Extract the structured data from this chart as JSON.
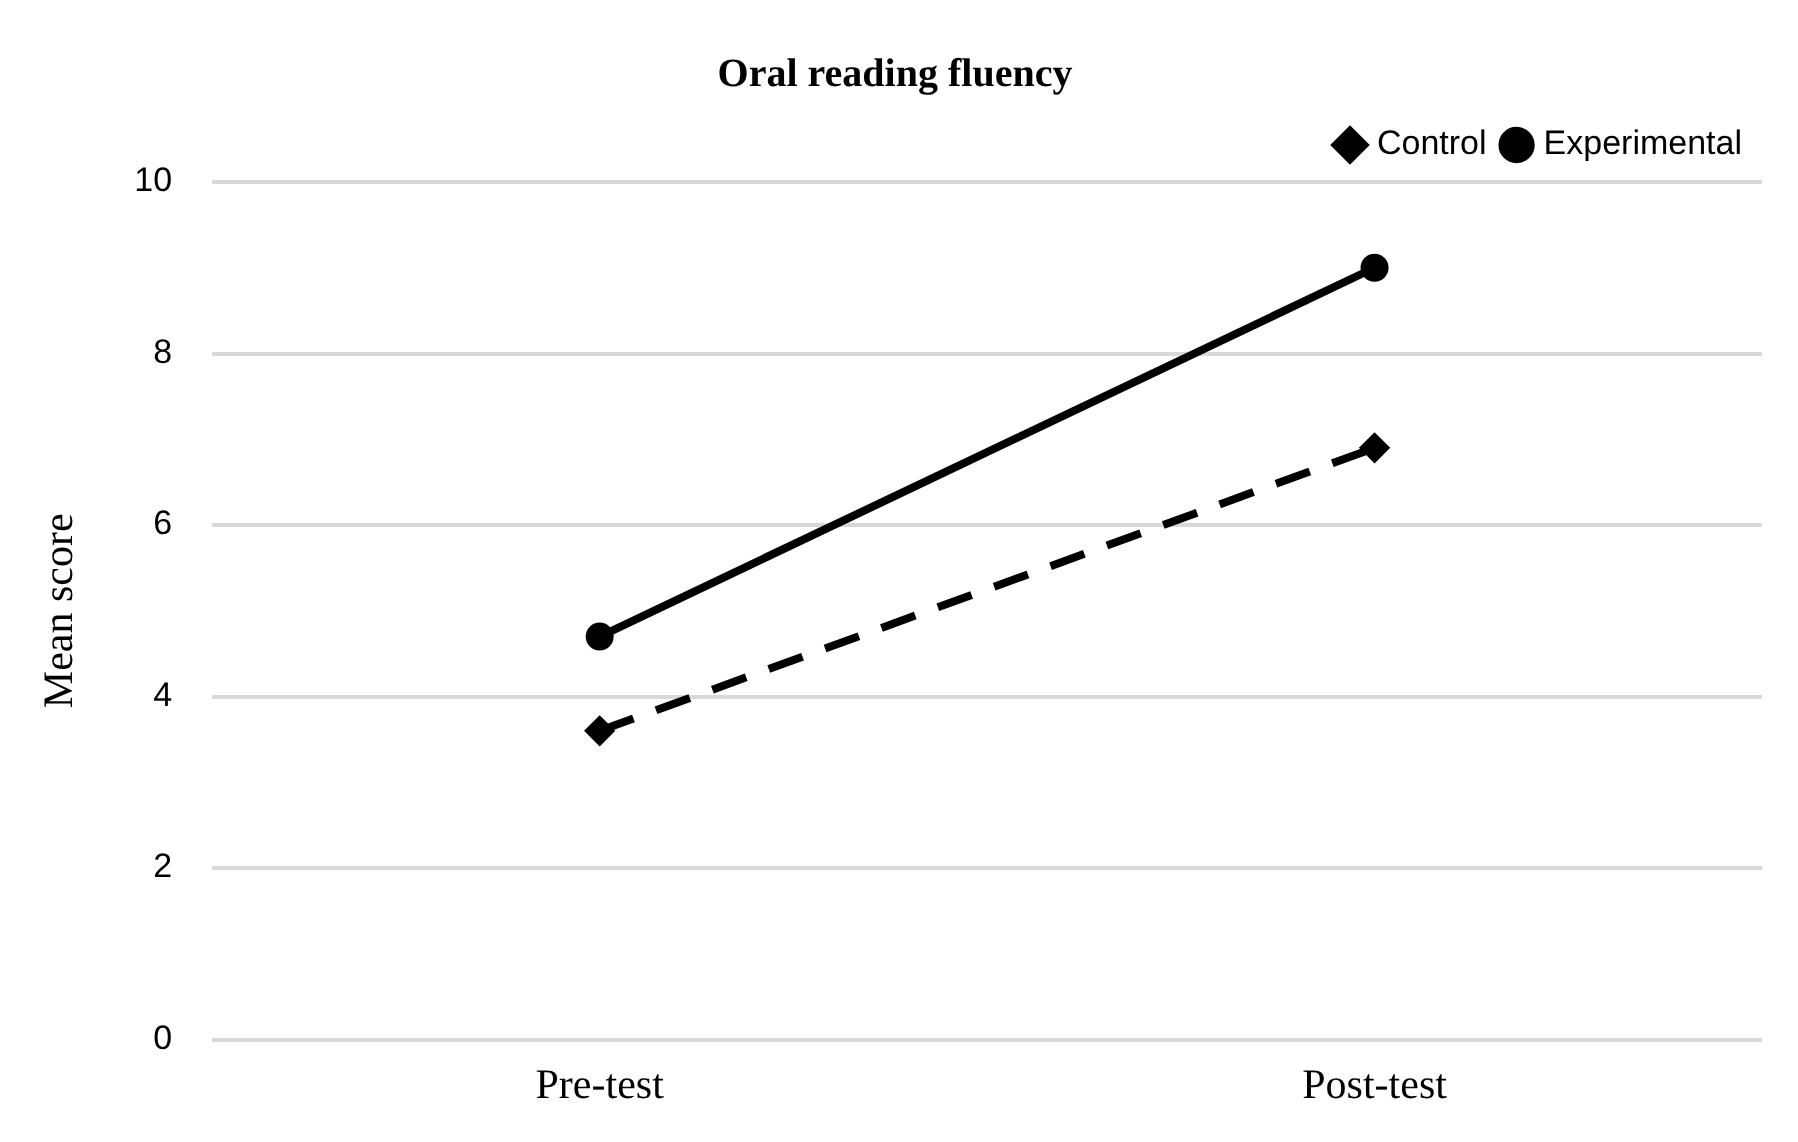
{
  "chart_data": {
    "type": "line",
    "title": "Oral reading fluency",
    "ylabel": "Mean score",
    "categories": [
      "Pre-test",
      "Post-test"
    ],
    "series": [
      {
        "name": "Control",
        "color": "#000000",
        "values": [
          3.6,
          6.9
        ],
        "line_style": "dashed",
        "marker": "diamond"
      },
      {
        "name": "Experimental",
        "color": "#000000",
        "values": [
          4.7,
          9.0
        ],
        "line_style": "solid",
        "marker": "circle"
      }
    ],
    "ylim": [
      0,
      10
    ],
    "yticks": [
      0,
      2,
      4,
      6,
      8,
      10
    ],
    "grid": "y",
    "legend": "top right"
  }
}
